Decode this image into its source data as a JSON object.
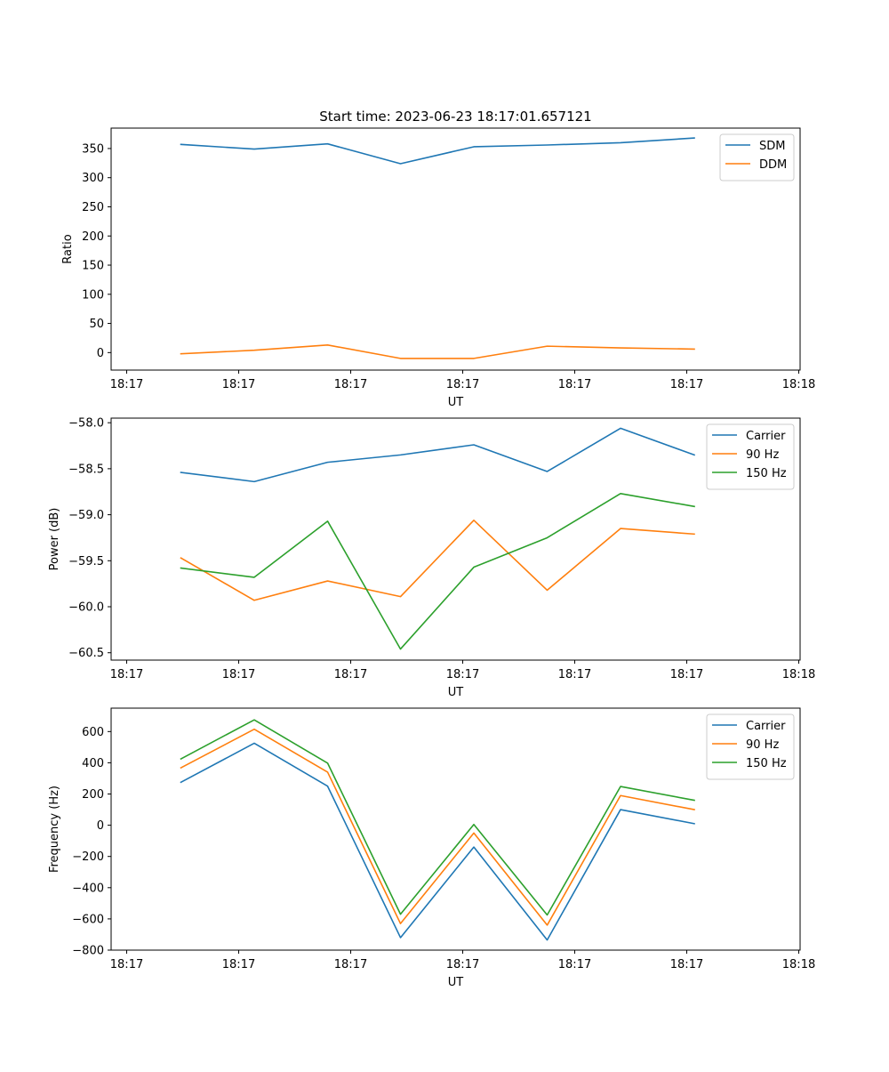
{
  "figure": {
    "title": "Start time: 2023-06-23 18:17:01.657121"
  },
  "chart_data": [
    {
      "type": "line",
      "title": "Start time: 2023-06-23 18:17:01.657121",
      "xlabel": "UT",
      "ylabel": "Ratio",
      "x_tick_labels": [
        "18:17",
        "18:17",
        "18:17",
        "18:17",
        "18:17",
        "18:17",
        "18:18"
      ],
      "x_points": 8,
      "ylim": [
        -30,
        385
      ],
      "yticks": [
        0,
        50,
        100,
        150,
        200,
        250,
        300,
        350
      ],
      "legend_position": "top-right",
      "grid": false,
      "series": [
        {
          "name": "SDM",
          "color": "#1f77b4",
          "values": [
            357,
            349,
            358,
            324,
            353,
            356,
            360,
            368
          ]
        },
        {
          "name": "DDM",
          "color": "#ff7f0e",
          "values": [
            -2,
            4,
            13,
            -10,
            -10,
            11,
            8,
            6
          ]
        }
      ]
    },
    {
      "type": "line",
      "title": "",
      "xlabel": "UT",
      "ylabel": "Power (dB)",
      "x_tick_labels": [
        "18:17",
        "18:17",
        "18:17",
        "18:17",
        "18:17",
        "18:17",
        "18:18"
      ],
      "x_points": 8,
      "ylim": [
        -60.58,
        -57.95
      ],
      "yticks": [
        -60.5,
        -60.0,
        -59.5,
        -59.0,
        -58.5,
        -58.0
      ],
      "ytick_labels": [
        "−60.5",
        "−60.0",
        "−59.5",
        "−59.0",
        "−58.5",
        "−58.0"
      ],
      "legend_position": "top-right",
      "grid": false,
      "series": [
        {
          "name": "Carrier",
          "color": "#1f77b4",
          "values": [
            -58.54,
            -58.64,
            -58.43,
            -58.35,
            -58.24,
            -58.53,
            -58.06,
            -58.35
          ]
        },
        {
          "name": "90 Hz",
          "color": "#ff7f0e",
          "values": [
            -59.47,
            -59.93,
            -59.72,
            -59.89,
            -59.06,
            -59.82,
            -59.15,
            -59.21
          ]
        },
        {
          "name": "150 Hz",
          "color": "#2ca02c",
          "values": [
            -59.58,
            -59.68,
            -59.07,
            -60.46,
            -59.57,
            -59.25,
            -58.77,
            -58.91
          ]
        }
      ]
    },
    {
      "type": "line",
      "title": "",
      "xlabel": "UT",
      "ylabel": "Frequency (Hz)",
      "x_tick_labels": [
        "18:17",
        "18:17",
        "18:17",
        "18:17",
        "18:17",
        "18:17",
        "18:18"
      ],
      "x_points": 8,
      "ylim": [
        -800,
        750
      ],
      "yticks": [
        -800,
        -600,
        -400,
        -200,
        0,
        200,
        400,
        600
      ],
      "ytick_labels": [
        "−800",
        "−600",
        "−400",
        "−200",
        "0",
        "200",
        "400",
        "600"
      ],
      "legend_position": "top-right",
      "grid": false,
      "series": [
        {
          "name": "Carrier",
          "color": "#1f77b4",
          "values": [
            275,
            525,
            250,
            -720,
            -140,
            -735,
            100,
            10
          ]
        },
        {
          "name": "90 Hz",
          "color": "#ff7f0e",
          "values": [
            368,
            615,
            340,
            -630,
            -50,
            -640,
            190,
            100
          ]
        },
        {
          "name": "150 Hz",
          "color": "#2ca02c",
          "values": [
            425,
            675,
            398,
            -570,
            5,
            -575,
            248,
            160
          ]
        }
      ]
    }
  ]
}
